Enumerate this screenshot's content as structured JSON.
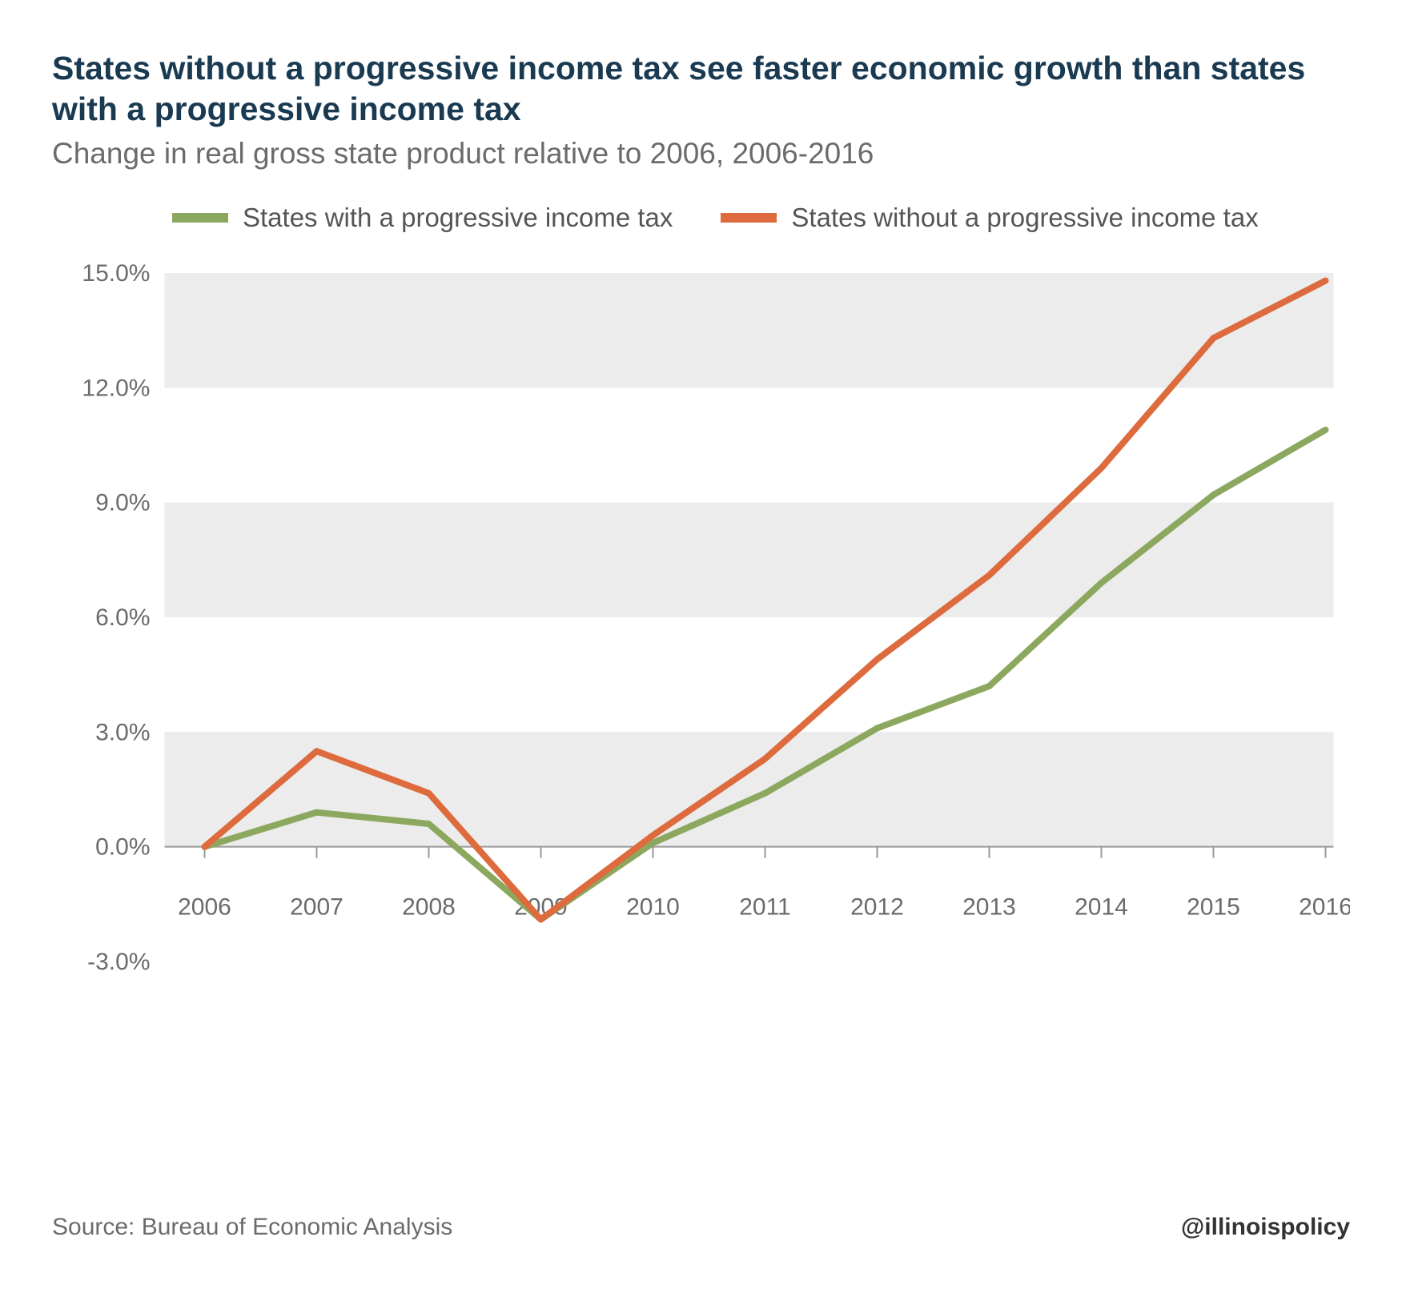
{
  "title": "States without a progressive income tax see faster economic growth than states with a progressive income tax",
  "subtitle": "Change in real gross state product relative to 2006, 2006-2016",
  "source": "Source: Bureau of Economic Analysis",
  "handle": "@illinoispolicy",
  "chart": {
    "type": "line",
    "background_color": "#ffffff",
    "band_color": "#ececec",
    "axis_color": "#999999",
    "tick_color": "#999999",
    "text_color": "#6b6b6b",
    "title_color": "#1a3a52",
    "line_width": 8,
    "font_size_axis": 30,
    "font_size_title": 41,
    "font_size_subtitle": 37,
    "font_size_legend": 33,
    "x": {
      "categories": [
        "2006",
        "2007",
        "2008",
        "2009",
        "2010",
        "2011",
        "2012",
        "2013",
        "2014",
        "2015",
        "2016"
      ]
    },
    "y": {
      "min": -3.0,
      "max": 15.0,
      "tick_step": 3.0,
      "ticks": [
        -3.0,
        0.0,
        3.0,
        6.0,
        9.0,
        12.0,
        15.0
      ],
      "format": "percent_one_decimal"
    },
    "bands": [
      {
        "from": 0.0,
        "to": 3.0
      },
      {
        "from": 6.0,
        "to": 9.0
      },
      {
        "from": 12.0,
        "to": 15.0
      }
    ],
    "series": [
      {
        "id": "with_progressive",
        "label": "States with a progressive income tax",
        "color": "#8ca85e",
        "values": [
          0.0,
          0.9,
          0.6,
          -1.9,
          0.1,
          1.4,
          3.1,
          4.2,
          6.9,
          9.2,
          10.9
        ]
      },
      {
        "id": "without_progressive",
        "label": "States without a progressive income tax",
        "color": "#dd6b3d",
        "values": [
          0.0,
          2.5,
          1.4,
          -1.9,
          0.3,
          2.3,
          4.9,
          7.1,
          9.9,
          13.3,
          14.8
        ]
      }
    ]
  }
}
